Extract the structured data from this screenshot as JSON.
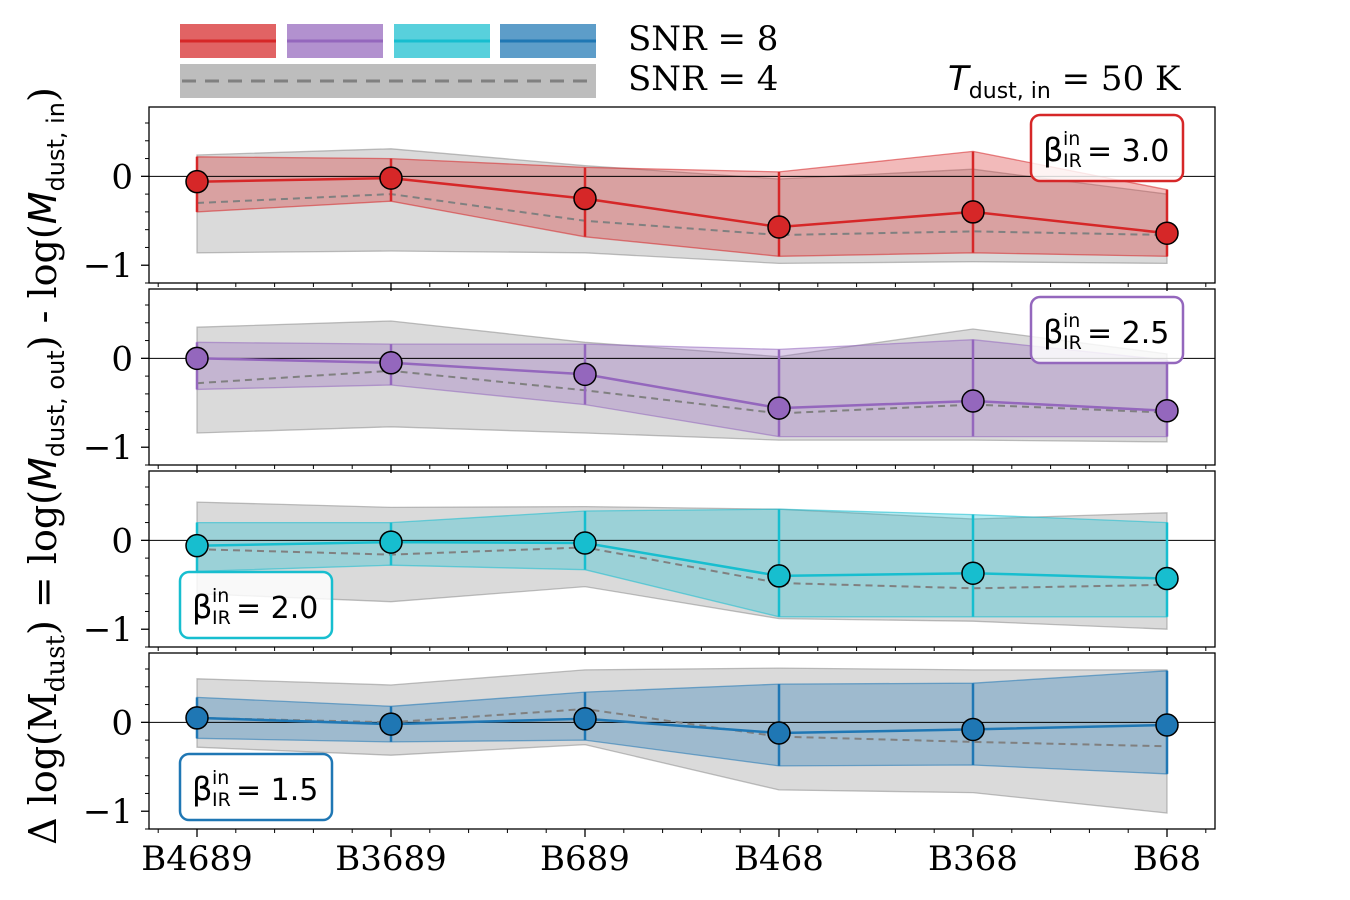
{
  "chart_data": {
    "type": "line",
    "ylabel": {
      "prefix": "Δ log(M",
      "prefix_sub": "dust",
      "eq": ") = log(",
      "mid": "M",
      "mid_sub": "dust, out",
      "minus": ") - log(",
      "end": "M",
      "end_sub": "dust, in",
      "close": ")"
    },
    "categories": [
      "B4689",
      "B3689",
      "B689",
      "B468",
      "B368",
      "B68"
    ],
    "ylim": [
      -1.2,
      0.78
    ],
    "yticks": [
      0,
      -1
    ],
    "ytick_labels": [
      "0",
      "−1"
    ],
    "legend": {
      "snr8_label": "SNR = 8",
      "snr4_label": "SNR = 4",
      "colors": [
        "#d62728",
        "#9467bd",
        "#17becf",
        "#1f77b4"
      ]
    },
    "annotation": {
      "main": "T",
      "sub": "dust, in",
      "rest": " = 50 K"
    },
    "panels": [
      {
        "beta_symbol": "β",
        "beta_sup": "in",
        "beta_sub": "IR",
        "beta_value": "= 3.0",
        "box_position": "top-right",
        "color": "#d62728",
        "snr8": {
          "median": [
            -0.06,
            -0.02,
            -0.25,
            -0.57,
            -0.4,
            -0.64
          ],
          "upper": [
            0.22,
            0.2,
            0.1,
            0.05,
            0.28,
            -0.15
          ],
          "lower": [
            -0.4,
            -0.28,
            -0.68,
            -0.9,
            -0.86,
            -0.9
          ]
        },
        "snr4": {
          "median": [
            -0.3,
            -0.2,
            -0.5,
            -0.66,
            -0.62,
            -0.66
          ],
          "upper": [
            0.24,
            0.31,
            0.12,
            -0.03,
            0.08,
            -0.2
          ],
          "lower": [
            -0.86,
            -0.84,
            -0.86,
            -0.98,
            -0.96,
            -0.98
          ]
        }
      },
      {
        "beta_symbol": "β",
        "beta_sup": "in",
        "beta_sub": "IR",
        "beta_value": "= 2.5",
        "box_position": "top-right",
        "color": "#9467bd",
        "snr8": {
          "median": [
            0.0,
            -0.05,
            -0.18,
            -0.56,
            -0.48,
            -0.59
          ],
          "upper": [
            0.18,
            0.16,
            0.16,
            0.1,
            0.21,
            -0.02
          ],
          "lower": [
            -0.35,
            -0.3,
            -0.52,
            -0.88,
            -0.88,
            -0.88
          ]
        },
        "snr4": {
          "median": [
            -0.28,
            -0.14,
            -0.36,
            -0.62,
            -0.52,
            -0.61
          ],
          "upper": [
            0.35,
            0.42,
            0.18,
            0.02,
            0.33,
            0.05
          ],
          "lower": [
            -0.84,
            -0.77,
            -0.84,
            -0.92,
            -0.92,
            -0.94
          ]
        }
      },
      {
        "beta_symbol": "β",
        "beta_sup": "in",
        "beta_sub": "IR",
        "beta_value": "= 2.0",
        "box_position": "bottom-left",
        "color": "#17becf",
        "snr8": {
          "median": [
            -0.06,
            -0.02,
            -0.03,
            -0.4,
            -0.37,
            -0.43
          ],
          "upper": [
            0.2,
            0.2,
            0.33,
            0.35,
            0.29,
            0.2
          ],
          "lower": [
            -0.35,
            -0.28,
            -0.33,
            -0.86,
            -0.86,
            -0.86
          ]
        },
        "snr4": {
          "median": [
            -0.1,
            -0.16,
            -0.08,
            -0.48,
            -0.54,
            -0.5
          ],
          "upper": [
            0.43,
            0.37,
            0.38,
            0.35,
            0.24,
            0.31
          ],
          "lower": [
            -0.6,
            -0.69,
            -0.52,
            -0.88,
            -0.91,
            -1.0
          ]
        }
      },
      {
        "beta_symbol": "β",
        "beta_sup": "in",
        "beta_sub": "IR",
        "beta_value": "= 1.5",
        "box_position": "bottom-left",
        "color": "#1f77b4",
        "snr8": {
          "median": [
            0.05,
            -0.02,
            0.04,
            -0.12,
            -0.08,
            -0.03
          ],
          "upper": [
            0.28,
            0.18,
            0.34,
            0.43,
            0.44,
            0.58
          ],
          "lower": [
            -0.18,
            -0.22,
            -0.2,
            -0.49,
            -0.48,
            -0.58
          ]
        },
        "snr4": {
          "median": [
            0.05,
            0.0,
            0.15,
            -0.16,
            -0.22,
            -0.27
          ],
          "upper": [
            0.49,
            0.42,
            0.59,
            0.61,
            0.59,
            0.59
          ],
          "lower": [
            -0.28,
            -0.37,
            -0.25,
            -0.76,
            -0.79,
            -1.02
          ]
        }
      }
    ]
  }
}
